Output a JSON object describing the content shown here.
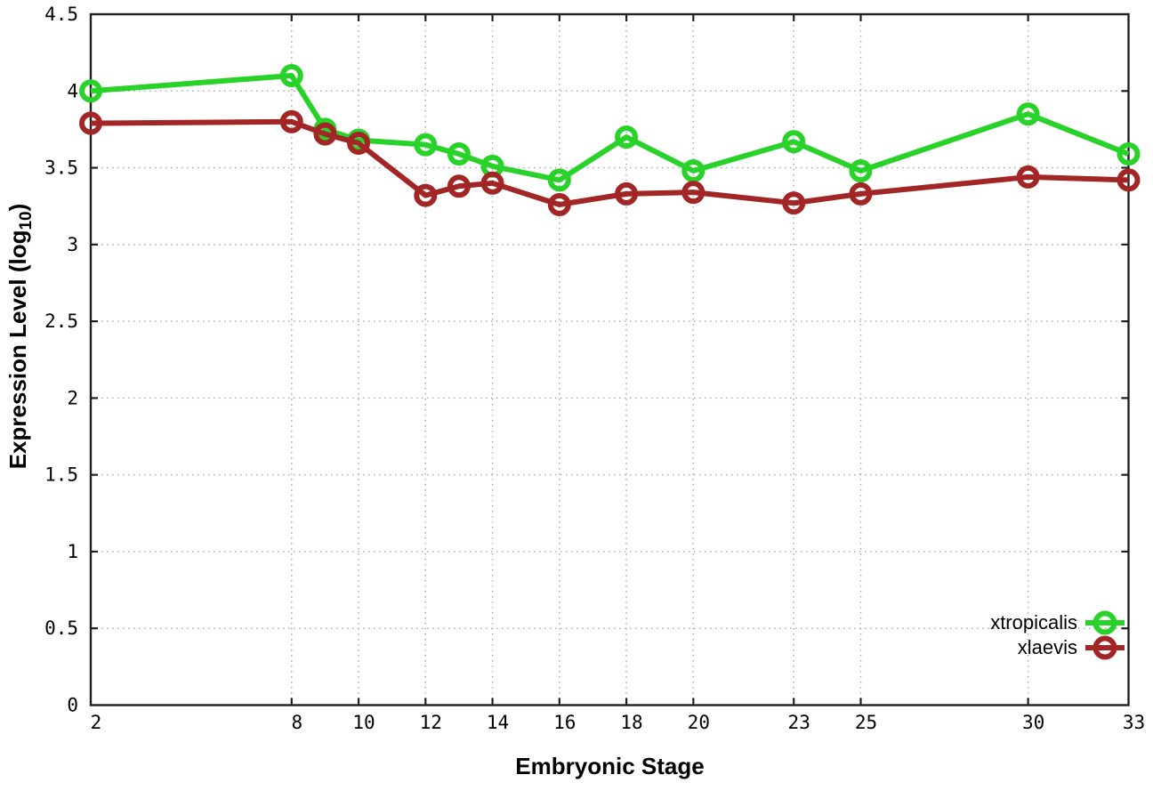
{
  "figure": {
    "xlabel": "Embryonic Stage",
    "ylabel": {
      "pre": "Expression Level (log",
      "sub": "10",
      "post": ")"
    }
  },
  "chart_data": {
    "type": "line",
    "title": "",
    "xlabel": "Embryonic Stage",
    "ylabel": "Expression Level (log10)",
    "x": [
      2,
      8,
      9,
      10,
      12,
      13,
      14,
      16,
      18,
      20,
      23,
      25,
      30,
      33
    ],
    "series": [
      {
        "name": "xtropicalis",
        "color": "#28d228",
        "values": [
          4.0,
          4.1,
          3.75,
          3.68,
          3.65,
          3.59,
          3.51,
          3.42,
          3.7,
          3.48,
          3.67,
          3.48,
          3.85,
          3.59
        ]
      },
      {
        "name": "xlaevis",
        "color": "#a32626",
        "values": [
          3.79,
          3.8,
          3.72,
          3.66,
          3.32,
          3.38,
          3.4,
          3.26,
          3.33,
          3.34,
          3.27,
          3.33,
          3.44,
          3.42
        ]
      }
    ],
    "xlim": [
      2,
      33
    ],
    "ylim": [
      0,
      4.5
    ],
    "xticks": {
      "values": [
        2,
        8,
        10,
        12,
        14,
        16,
        18,
        20,
        23,
        25,
        30,
        33
      ],
      "labels": [
        "2",
        "8",
        "10",
        "12",
        "14",
        "16",
        "18",
        "20",
        "23",
        "25",
        "30",
        "33"
      ]
    },
    "yticks": {
      "values": [
        0,
        0.5,
        1,
        1.5,
        2,
        2.5,
        3,
        3.5,
        4,
        4.5
      ],
      "labels": [
        "0",
        "0.5",
        "1",
        "1.5",
        "2",
        "2.5",
        "3",
        "3.5",
        "4",
        "4.5"
      ]
    },
    "grid": true,
    "marker": "open-circle",
    "legend_position": "bottom-right"
  },
  "colors": {
    "background": "#ffffff",
    "border": "#202020",
    "grid": "#adadad",
    "tick_label": "#000000"
  }
}
